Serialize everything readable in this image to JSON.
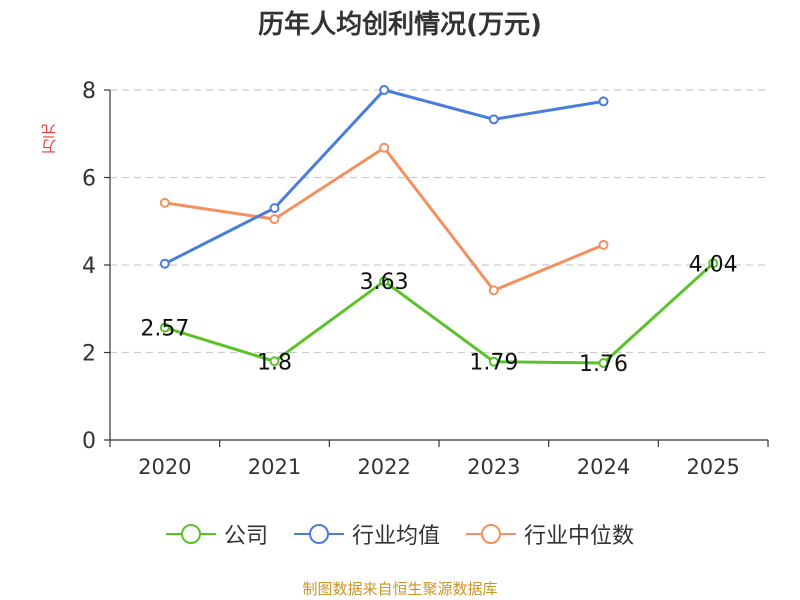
{
  "chart_data": {
    "type": "line",
    "title": "历年人均创利情况(万元)",
    "ylabel": "万元",
    "xlabel": "",
    "categories": [
      "2020",
      "2021",
      "2022",
      "2023",
      "2024",
      "2025"
    ],
    "ylim": [
      0,
      8
    ],
    "yticks": [
      "0",
      "2",
      "4",
      "6",
      "8"
    ],
    "grid": true,
    "legend_position": "bottom",
    "series": [
      {
        "name": "公司",
        "color": "#5ac229",
        "values": [
          2.57,
          1.8,
          3.63,
          1.79,
          1.76,
          4.04
        ],
        "labels": [
          "2.57",
          "1.8",
          "3.63",
          "1.79",
          "1.76",
          "4.04"
        ]
      },
      {
        "name": "行业均值",
        "color": "#4a7ddb",
        "values": [
          4.03,
          5.3,
          8.0,
          7.33,
          7.74,
          null
        ]
      },
      {
        "name": "行业中位数",
        "color": "#f39060",
        "values": [
          5.42,
          5.05,
          6.68,
          3.42,
          4.46,
          null
        ]
      }
    ]
  },
  "source": "制图数据来自恒生聚源数据库"
}
